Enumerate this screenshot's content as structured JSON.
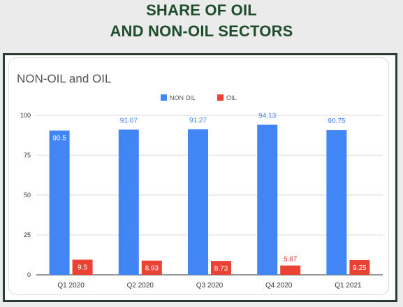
{
  "header": {
    "line1": "SHARE OF OIL",
    "line2": "AND NON-OIL SECTORS"
  },
  "colors": {
    "non_oil": "#4285f4",
    "oil": "#ea4335",
    "header_text": "#1f4d2c",
    "frame": "#2b3d33"
  },
  "chart_data": {
    "type": "bar",
    "title": "NON-OIL and OIL",
    "categories": [
      "Q1 2020",
      "Q2 2020",
      "Q3 2020",
      "Q4 2020",
      "Q1 2021"
    ],
    "series": [
      {
        "name": "NON OIL",
        "values": [
          90.5,
          91.07,
          91.27,
          94.13,
          90.75
        ],
        "labels": [
          "90.5",
          "91.07",
          "91.27",
          "94.13",
          "90.75"
        ]
      },
      {
        "name": "OIL",
        "values": [
          9.5,
          8.93,
          8.73,
          5.87,
          9.25
        ],
        "labels": [
          "9.5",
          "8.93",
          "8.73",
          "5.87",
          "9.25"
        ]
      }
    ],
    "ylim": [
      0,
      100
    ],
    "yticks": [
      "0",
      "25",
      "50",
      "75",
      "100"
    ],
    "grid": true,
    "legend": "top-center",
    "xlabel": "",
    "ylabel": ""
  }
}
